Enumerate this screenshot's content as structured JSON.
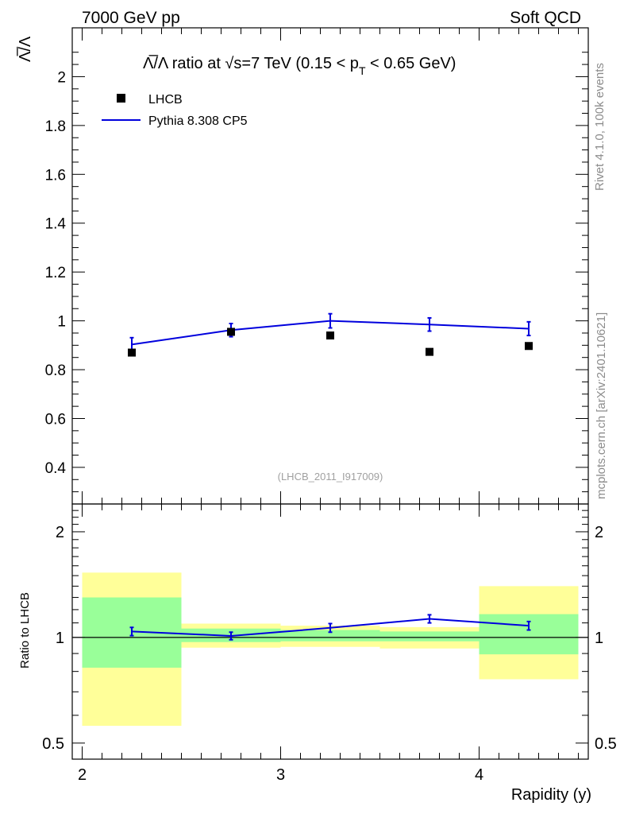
{
  "header": {
    "left": "7000 GeV pp",
    "right": "Soft QCD"
  },
  "side_labels": {
    "rivet": "Rivet 4.1.0,  100k events",
    "source": "mcplots.cern.ch [arXiv:2401.10621]"
  },
  "watermark": "(LHCB_2011_I917009)",
  "chart_data": {
    "type": "scatter",
    "title": "Λ̅/Λ ratio at √s=7 TeV (0.15 < p_T < 0.65 GeV)",
    "title_parts": {
      "lead": "Λ̅/Λ ratio at √s=7 TeV (0.15 < p",
      "sub": "T",
      "tail": " < 0.65 GeV)"
    },
    "xlabel": "Rapidity (y)",
    "ylabel": "Λ̅/Λ",
    "xlim": [
      1.95,
      4.55
    ],
    "ylim": [
      0.25,
      2.2
    ],
    "x_ticks": [
      2,
      3,
      4
    ],
    "x_tick_labels": [
      "2",
      "3",
      "4"
    ],
    "y_ticks": [
      0.4,
      0.6,
      0.8,
      1,
      1.2,
      1.4,
      1.6,
      1.8,
      2
    ],
    "y_tick_labels": [
      "0.4",
      "0.6",
      "0.8",
      "1",
      "1.2",
      "1.4",
      "1.6",
      "1.8",
      "2"
    ],
    "legend": [
      "LHCB",
      "Pythia 8.308 CP5"
    ],
    "legend_position": "top-left",
    "bins": [
      [
        2.0,
        2.5
      ],
      [
        2.5,
        3.0
      ],
      [
        3.0,
        3.5
      ],
      [
        3.5,
        4.0
      ],
      [
        4.0,
        4.5
      ]
    ],
    "series": [
      {
        "name": "LHCB",
        "kind": "markers",
        "color": "#000000",
        "x": [
          2.25,
          2.75,
          3.25,
          3.75,
          4.25
        ],
        "y": [
          0.87,
          0.955,
          0.94,
          0.873,
          0.897
        ]
      },
      {
        "name": "Pythia 8.308 CP5",
        "kind": "line",
        "color": "#0000dd",
        "x": [
          2.25,
          2.75,
          3.25,
          3.75,
          4.25
        ],
        "y": [
          0.903,
          0.962,
          1.0,
          0.985,
          0.968
        ],
        "yerr": [
          0.028,
          0.027,
          0.029,
          0.027,
          0.028
        ]
      }
    ],
    "ratio": {
      "ylabel": "Ratio to LHCB",
      "ylim": [
        0.45,
        2.4
      ],
      "log": true,
      "y_ticks": [
        0.5,
        1,
        2
      ],
      "y_tick_labels": [
        "0.5",
        "1",
        "2"
      ],
      "mc_values": [
        1.04,
        1.01,
        1.065,
        1.13,
        1.08
      ],
      "mc_errors": [
        0.028,
        0.025,
        0.03,
        0.03,
        0.03
      ],
      "band_green": [
        [
          0.82,
          1.3
        ],
        [
          0.97,
          1.06
        ],
        [
          0.975,
          1.05
        ],
        [
          0.975,
          1.04
        ],
        [
          0.895,
          1.165
        ]
      ],
      "band_yellow": [
        [
          0.56,
          1.53
        ],
        [
          0.935,
          1.095
        ],
        [
          0.94,
          1.08
        ],
        [
          0.93,
          1.07
        ],
        [
          0.76,
          1.4
        ]
      ],
      "band_colors": {
        "green": "#99ff99",
        "yellow": "#ffff99"
      }
    }
  }
}
